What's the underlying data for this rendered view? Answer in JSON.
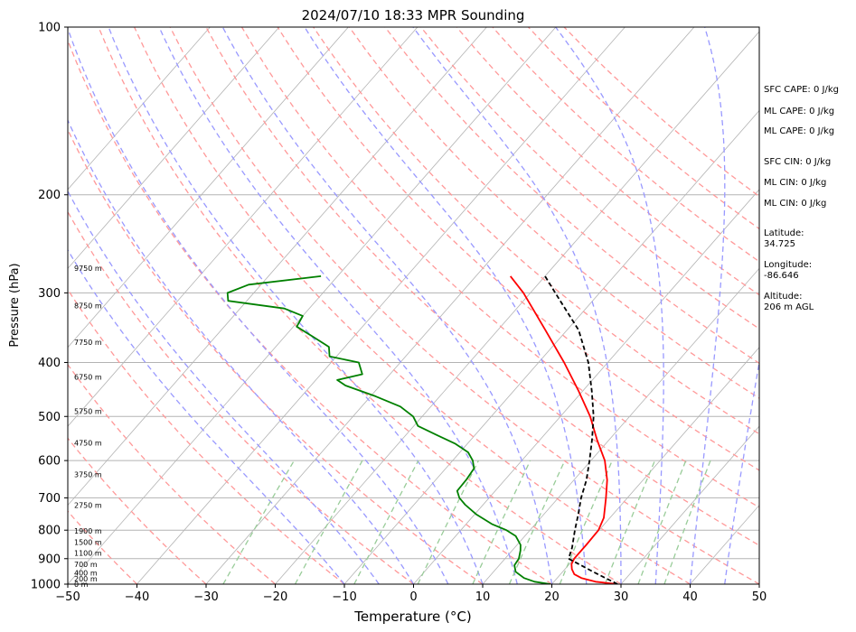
{
  "chart_data": {
    "type": "line",
    "title": "2024/07/10 18:33 MPR Sounding",
    "xlabel": "Temperature (°C)",
    "ylabel": "Pressure (hPa)",
    "xlim": [
      -50,
      50
    ],
    "ylim": [
      1000,
      100
    ],
    "y_scale": "log",
    "x_ticks": [
      -50,
      -40,
      -30,
      -20,
      -10,
      0,
      10,
      20,
      30,
      40,
      50
    ],
    "x_tick_labels": [
      "−50",
      "−40",
      "−30",
      "−20",
      "−10",
      "0",
      "10",
      "20",
      "30",
      "40",
      "50"
    ],
    "y_ticks": [
      100,
      200,
      300,
      400,
      500,
      600,
      700,
      800,
      900,
      1000
    ],
    "y_tick_labels": [
      "100",
      "200",
      "300",
      "400",
      "500",
      "600",
      "700",
      "800",
      "900",
      "1000"
    ],
    "grid": true,
    "series": [
      {
        "id": "temperature",
        "color": "#ff0000",
        "points": [
          {
            "p": 1000,
            "t": 29.5
          },
          {
            "p": 990,
            "t": 26.0
          },
          {
            "p": 975,
            "t": 23.5
          },
          {
            "p": 960,
            "t": 22.0
          },
          {
            "p": 940,
            "t": 21.0
          },
          {
            "p": 920,
            "t": 20.3
          },
          {
            "p": 900,
            "t": 20.0
          },
          {
            "p": 850,
            "t": 20.0
          },
          {
            "p": 800,
            "t": 19.9
          },
          {
            "p": 760,
            "t": 19.1
          },
          {
            "p": 700,
            "t": 16.9
          },
          {
            "p": 650,
            "t": 14.8
          },
          {
            "p": 600,
            "t": 12.0
          },
          {
            "p": 550,
            "t": 8.2
          },
          {
            "p": 500,
            "t": 4.3
          },
          {
            "p": 450,
            "t": -0.6
          },
          {
            "p": 400,
            "t": -6.3
          },
          {
            "p": 350,
            "t": -13.1
          },
          {
            "p": 320,
            "t": -17.7
          },
          {
            "p": 300,
            "t": -21.0
          },
          {
            "p": 280,
            "t": -25.0
          }
        ]
      },
      {
        "id": "dewpoint",
        "color": "#008000",
        "points": [
          {
            "p": 1000,
            "t": 19.8
          },
          {
            "p": 990,
            "t": 17.2
          },
          {
            "p": 975,
            "t": 15.2
          },
          {
            "p": 950,
            "t": 13.2
          },
          {
            "p": 925,
            "t": 12.2
          },
          {
            "p": 900,
            "t": 12.0
          },
          {
            "p": 870,
            "t": 11.2
          },
          {
            "p": 850,
            "t": 10.5
          },
          {
            "p": 820,
            "t": 8.7
          },
          {
            "p": 800,
            "t": 6.6
          },
          {
            "p": 780,
            "t": 3.7
          },
          {
            "p": 750,
            "t": 0.3
          },
          {
            "p": 720,
            "t": -2.6
          },
          {
            "p": 700,
            "t": -4.3
          },
          {
            "p": 680,
            "t": -5.5
          },
          {
            "p": 650,
            "t": -5.6
          },
          {
            "p": 620,
            "t": -5.9
          },
          {
            "p": 600,
            "t": -7.1
          },
          {
            "p": 580,
            "t": -8.8
          },
          {
            "p": 560,
            "t": -11.7
          },
          {
            "p": 540,
            "t": -15.5
          },
          {
            "p": 520,
            "t": -19.4
          },
          {
            "p": 500,
            "t": -21.3
          },
          {
            "p": 480,
            "t": -24.4
          },
          {
            "p": 460,
            "t": -29.3
          },
          {
            "p": 440,
            "t": -35.0
          },
          {
            "p": 430,
            "t": -36.9
          },
          {
            "p": 420,
            "t": -34.0
          },
          {
            "p": 400,
            "t": -36.0
          },
          {
            "p": 390,
            "t": -41.0
          },
          {
            "p": 375,
            "t": -42.3
          },
          {
            "p": 360,
            "t": -45.8
          },
          {
            "p": 345,
            "t": -49.5
          },
          {
            "p": 330,
            "t": -50.0
          },
          {
            "p": 320,
            "t": -53.6
          },
          {
            "p": 310,
            "t": -62.7
          },
          {
            "p": 300,
            "t": -63.8
          },
          {
            "p": 290,
            "t": -61.8
          },
          {
            "p": 280,
            "t": -52.4
          }
        ]
      },
      {
        "id": "parcel",
        "color": "#000000",
        "dashed": true,
        "points": [
          {
            "p": 1000,
            "t": 29.5
          },
          {
            "p": 950,
            "t": 24.4
          },
          {
            "p": 900,
            "t": 19.2
          },
          {
            "p": 860,
            "t": 18.3
          },
          {
            "p": 800,
            "t": 16.5
          },
          {
            "p": 750,
            "t": 15.0
          },
          {
            "p": 700,
            "t": 13.3
          },
          {
            "p": 650,
            "t": 11.8
          },
          {
            "p": 600,
            "t": 9.8
          },
          {
            "p": 550,
            "t": 7.5
          },
          {
            "p": 500,
            "t": 4.8
          },
          {
            "p": 450,
            "t": 1.3
          },
          {
            "p": 400,
            "t": -2.8
          },
          {
            "p": 350,
            "t": -8.3
          },
          {
            "p": 300,
            "t": -16.4
          },
          {
            "p": 280,
            "t": -20.0
          }
        ]
      }
    ],
    "background": {
      "isotherms_c": [
        -100,
        -90,
        -80,
        -70,
        -60,
        -50,
        -40,
        -30,
        -20,
        -10,
        0,
        10,
        20,
        30,
        40,
        50
      ],
      "dry_adiabats_c": [
        -40,
        -30,
        -20,
        -10,
        0,
        10,
        20,
        30,
        40,
        50,
        60,
        70,
        80,
        90,
        100,
        110,
        120,
        130,
        140,
        150,
        160
      ],
      "moist_adiabats_c": [
        -10,
        -5,
        0,
        5,
        10,
        15,
        20,
        25,
        30,
        35,
        40,
        45
      ],
      "mixing_ratios_gkg": [
        0.4,
        1,
        2,
        4,
        7,
        10,
        16,
        24,
        32,
        40
      ],
      "isotherm_color": "#b3b3b3",
      "dry_adiabat_color": "#ff9999",
      "moist_adiabat_color": "#9999ff",
      "mixing_ratio_color": "#99cc99"
    },
    "height_labels": [
      {
        "text": "0 m",
        "p": 1000
      },
      {
        "text": "200 m",
        "p": 978
      },
      {
        "text": "400 m",
        "p": 955
      },
      {
        "text": "700 m",
        "p": 922
      },
      {
        "text": "1100 m",
        "p": 880
      },
      {
        "text": "1500 m",
        "p": 840
      },
      {
        "text": "1900 m",
        "p": 802
      },
      {
        "text": "2750 m",
        "p": 722
      },
      {
        "text": "3750 m",
        "p": 636
      },
      {
        "text": "4750 m",
        "p": 558
      },
      {
        "text": "5750 m",
        "p": 489
      },
      {
        "text": "6750 m",
        "p": 425
      },
      {
        "text": "7750 m",
        "p": 368
      },
      {
        "text": "8750 m",
        "p": 316
      },
      {
        "text": "9750 m",
        "p": 271
      }
    ]
  },
  "side_panel": {
    "sfc_cape": "SFC CAPE: 0 J/kg",
    "ml_cape_1": "ML CAPE: 0 J/kg",
    "ml_cape_2": "ML CAPE: 0 J/kg",
    "sfc_cin": "SFC CIN: 0 J/kg",
    "ml_cin_1": "ML CIN: 0 J/kg",
    "ml_cin_2": "ML CIN: 0 J/kg",
    "latitude_label": "Latitude:",
    "latitude_value": "34.725",
    "longitude_label": "Longitude:",
    "longitude_value": "-86.646",
    "altitude_label": "Altitude:",
    "altitude_value": "206 m AGL"
  }
}
